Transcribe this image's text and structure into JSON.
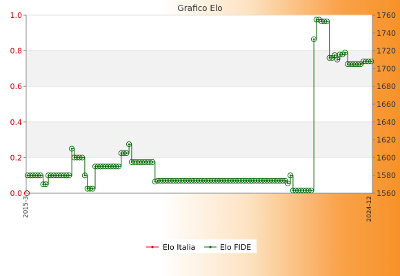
{
  "chart_data": {
    "type": "line",
    "title": "Grafico Elo",
    "left_axis": {
      "ylim": [
        0,
        1.0
      ],
      "ticks": [
        "0.0",
        "0.2",
        "0.4",
        "0.6",
        "0.8",
        "1.0"
      ],
      "color": "#cc0000"
    },
    "right_axis": {
      "ylim": [
        1560,
        1760
      ],
      "ticks": [
        "1560",
        "1580",
        "1600",
        "1620",
        "1640",
        "1660",
        "1680",
        "1700",
        "1720",
        "1740",
        "1760"
      ]
    },
    "grid": "horizontal bands",
    "legend_position": "bottom",
    "x_labels": [
      "2015-3",
      "2024-12"
    ],
    "series": [
      {
        "name": "Elo Italia",
        "color": "#cc0000",
        "axis": "left",
        "values": [
          0
        ]
      },
      {
        "name": "Elo FIDE",
        "color": "#006400",
        "axis": "right",
        "values": [
          1580,
          1580,
          1580,
          1580,
          1580,
          1580,
          1570,
          1570,
          1580,
          1580,
          1580,
          1580,
          1580,
          1580,
          1580,
          1580,
          1580,
          1610,
          1600,
          1600,
          1600,
          1600,
          1580,
          1565,
          1565,
          1565,
          1590,
          1590,
          1590,
          1590,
          1590,
          1590,
          1590,
          1590,
          1590,
          1590,
          1605,
          1605,
          1605,
          1615,
          1595,
          1595,
          1595,
          1595,
          1595,
          1595,
          1595,
          1595,
          1595,
          1573,
          1574,
          1574,
          1574,
          1574,
          1574,
          1574,
          1574,
          1574,
          1574,
          1574,
          1574,
          1574,
          1574,
          1574,
          1574,
          1574,
          1574,
          1574,
          1574,
          1574,
          1574,
          1574,
          1574,
          1574,
          1574,
          1574,
          1574,
          1574,
          1574,
          1574,
          1574,
          1574,
          1574,
          1574,
          1574,
          1574,
          1574,
          1574,
          1574,
          1574,
          1574,
          1574,
          1574,
          1574,
          1574,
          1574,
          1574,
          1574,
          1574,
          1574,
          1571,
          1580,
          1563,
          1563,
          1563,
          1563,
          1563,
          1563,
          1563,
          1563,
          1733,
          1755,
          1755,
          1753,
          1753,
          1753,
          1712,
          1712,
          1715,
          1710,
          1716,
          1716,
          1718,
          1705,
          1705,
          1705,
          1705,
          1705,
          1705,
          1708,
          1708,
          1708,
          1708
        ]
      }
    ]
  }
}
